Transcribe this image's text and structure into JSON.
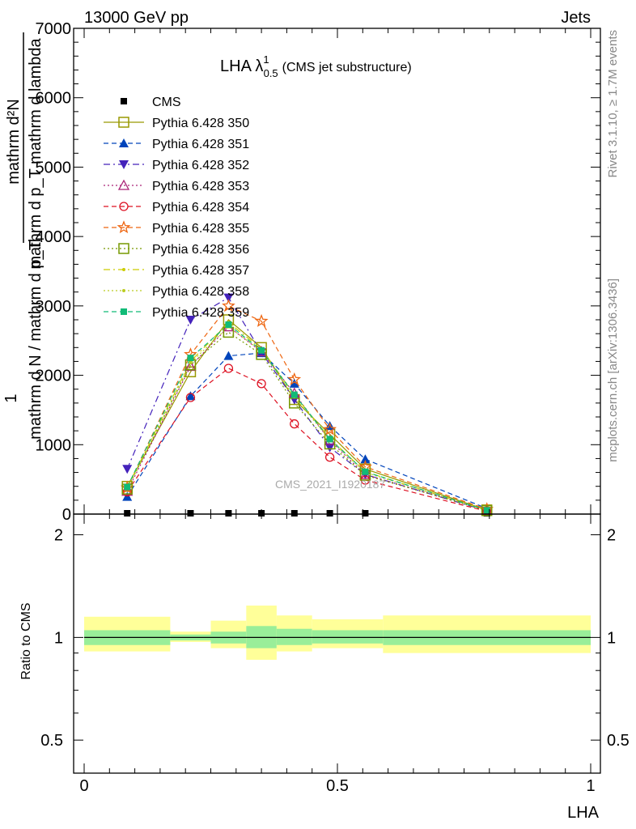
{
  "header": {
    "left": "13000 GeV pp",
    "right": "Jets"
  },
  "side_labels": {
    "rivet": "Rivet 3.1.10, ≥ 1.7M events",
    "mcplots": "mcplots.cern.ch [arXiv:1306.3436]"
  },
  "watermark": "CMS_2021_I1920187",
  "colors": {
    "CMS": "#000000",
    "350": "#999900",
    "351": "#0044bb",
    "352": "#4422bb",
    "353": "#aa2277",
    "354": "#dd1122",
    "355": "#ee6611",
    "356": "#779900",
    "357": "#cccc00",
    "358": "#bbcc22",
    "359": "#11bb77",
    "band_inner": "#99ee99",
    "band_outer": "#ffff99"
  },
  "chart_data": [
    {
      "type": "line",
      "title_main": "LHA λ",
      "title_sup": "1",
      "title_sub": "0.5",
      "title_tail": "(CMS jet substructure)",
      "ylabel": "1/mathrm d N / mathrm d p_T mathrm d^2N/mathrm d p_T mathrm d lambda",
      "ylabel_num": "mathrm d²N",
      "ylabel_den": "mathrm d p_T mathrm d lambda",
      "ylabel_one": "1",
      "ylabel_lower": "mathrm d N / mathrm d p_T",
      "xlim": [
        0,
        1
      ],
      "ylim": [
        0,
        7000
      ],
      "y_ticks": [
        0,
        1000,
        2000,
        3000,
        4000,
        5000,
        6000,
        7000
      ],
      "y_tick_labels": [
        "0",
        "1000",
        "2000",
        "3000",
        "4000",
        "5000",
        "6000",
        "7000"
      ],
      "x": [
        0.085,
        0.21,
        0.285,
        0.35,
        0.415,
        0.485,
        0.555,
        0.795
      ],
      "series": [
        {
          "name": "CMS",
          "style": "cms",
          "values": [
            0,
            0,
            0,
            0,
            0,
            0,
            0,
            0
          ]
        },
        {
          "name": "Pythia 6.428 350",
          "style": "solid",
          "marker": "square-open",
          "values": [
            400,
            2050,
            2800,
            2400,
            1650,
            1150,
            650,
            60
          ]
        },
        {
          "name": "Pythia 6.428 351",
          "style": "dashed",
          "marker": "triangle-up",
          "values": [
            250,
            1700,
            2280,
            2320,
            1880,
            1270,
            790,
            80
          ]
        },
        {
          "name": "Pythia 6.428 352",
          "style": "dashdot",
          "marker": "triangle-down",
          "values": [
            650,
            2800,
            3120,
            2330,
            1650,
            960,
            570,
            45
          ]
        },
        {
          "name": "Pythia 6.428 353",
          "style": "dotted",
          "marker": "triangle-up-open",
          "values": [
            330,
            2130,
            2700,
            2340,
            1740,
            1060,
            570,
            55
          ]
        },
        {
          "name": "Pythia 6.428 354",
          "style": "dashed",
          "marker": "circle-open",
          "values": [
            320,
            1680,
            2100,
            1880,
            1300,
            820,
            490,
            40
          ]
        },
        {
          "name": "Pythia 6.428 355",
          "style": "dashed",
          "marker": "star-open",
          "values": [
            380,
            2300,
            3000,
            2780,
            1940,
            1220,
            680,
            70
          ]
        },
        {
          "name": "Pythia 6.428 356",
          "style": "dotted",
          "marker": "square-open",
          "values": [
            360,
            2150,
            2620,
            2300,
            1600,
            1010,
            560,
            50
          ]
        },
        {
          "name": "Pythia 6.428 357",
          "style": "dashdot",
          "marker": "small-dot",
          "values": [
            380,
            2200,
            2760,
            2380,
            1720,
            1090,
            610,
            55
          ]
        },
        {
          "name": "Pythia 6.428 358",
          "style": "dotted",
          "marker": "small-dot",
          "values": [
            370,
            2180,
            2700,
            2350,
            1690,
            1070,
            600,
            55
          ]
        },
        {
          "name": "Pythia 6.428 359",
          "style": "dashed",
          "marker": "square-filled",
          "values": [
            390,
            2250,
            2730,
            2360,
            1720,
            1080,
            610,
            55
          ]
        }
      ]
    },
    {
      "type": "area",
      "ylabel": "Ratio to CMS",
      "xlabel": "LHA",
      "xlim": [
        0,
        1
      ],
      "ylim": [
        0.4,
        2.3
      ],
      "log_y": true,
      "y_ticks": [
        0.5,
        1,
        2
      ],
      "y_tick_labels": [
        "0.5",
        "1",
        "2"
      ],
      "x_ticks": [
        0,
        0.5,
        1
      ],
      "x_tick_labels": [
        "0",
        "0.5",
        "1"
      ],
      "bins": [
        {
          "x_low": 0.0,
          "x_high": 0.17,
          "inner": [
            0.95,
            1.05
          ],
          "outer": [
            0.91,
            1.15
          ]
        },
        {
          "x_low": 0.17,
          "x_high": 0.25,
          "inner": [
            0.98,
            1.02
          ],
          "outer": [
            0.97,
            1.04
          ]
        },
        {
          "x_low": 0.25,
          "x_high": 0.32,
          "inner": [
            0.96,
            1.04
          ],
          "outer": [
            0.93,
            1.12
          ]
        },
        {
          "x_low": 0.32,
          "x_high": 0.38,
          "inner": [
            0.93,
            1.08
          ],
          "outer": [
            0.86,
            1.24
          ]
        },
        {
          "x_low": 0.38,
          "x_high": 0.45,
          "inner": [
            0.95,
            1.06
          ],
          "outer": [
            0.91,
            1.16
          ]
        },
        {
          "x_low": 0.45,
          "x_high": 0.59,
          "inner": [
            0.96,
            1.05
          ],
          "outer": [
            0.93,
            1.13
          ]
        },
        {
          "x_low": 0.59,
          "x_high": 1.0,
          "inner": [
            0.95,
            1.05
          ],
          "outer": [
            0.9,
            1.16
          ]
        }
      ],
      "reference_line": 1
    }
  ]
}
